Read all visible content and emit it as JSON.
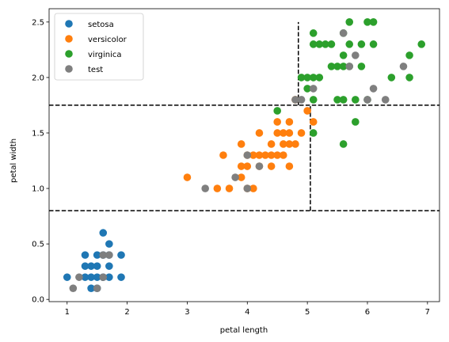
{
  "chart_data": {
    "type": "scatter",
    "title": "",
    "xlabel": "petal length",
    "ylabel": "petal width",
    "xlim": [
      0.7,
      7.2
    ],
    "ylim": [
      -0.02,
      2.62
    ],
    "x_ticks": [
      1,
      2,
      3,
      4,
      5,
      6,
      7
    ],
    "y_ticks": [
      0.0,
      0.5,
      1.0,
      1.5,
      2.0,
      2.5
    ],
    "x_tick_labels": [
      "1",
      "2",
      "3",
      "4",
      "5",
      "6",
      "7"
    ],
    "y_tick_labels": [
      "0.0",
      "0.5",
      "1.0",
      "1.5",
      "2.0",
      "2.5"
    ],
    "grid": false,
    "legend_position": "top-left",
    "series": [
      {
        "name": "setosa",
        "color": "#1f77b4",
        "points": [
          [
            1.0,
            0.2
          ],
          [
            1.3,
            0.2
          ],
          [
            1.3,
            0.3
          ],
          [
            1.3,
            0.4
          ],
          [
            1.4,
            0.1
          ],
          [
            1.4,
            0.2
          ],
          [
            1.4,
            0.3
          ],
          [
            1.5,
            0.1
          ],
          [
            1.5,
            0.2
          ],
          [
            1.5,
            0.3
          ],
          [
            1.5,
            0.4
          ],
          [
            1.6,
            0.2
          ],
          [
            1.6,
            0.4
          ],
          [
            1.6,
            0.6
          ],
          [
            1.7,
            0.2
          ],
          [
            1.7,
            0.3
          ],
          [
            1.7,
            0.4
          ],
          [
            1.7,
            0.5
          ],
          [
            1.9,
            0.2
          ],
          [
            1.9,
            0.4
          ]
        ]
      },
      {
        "name": "versicolor",
        "color": "#ff7f0e",
        "points": [
          [
            3.0,
            1.1
          ],
          [
            3.5,
            1.0
          ],
          [
            3.6,
            1.3
          ],
          [
            3.7,
            1.0
          ],
          [
            3.9,
            1.1
          ],
          [
            3.9,
            1.2
          ],
          [
            3.9,
            1.4
          ],
          [
            4.0,
            1.0
          ],
          [
            4.0,
            1.2
          ],
          [
            4.0,
            1.3
          ],
          [
            4.1,
            1.0
          ],
          [
            4.1,
            1.3
          ],
          [
            4.2,
            1.2
          ],
          [
            4.2,
            1.3
          ],
          [
            4.2,
            1.5
          ],
          [
            4.3,
            1.3
          ],
          [
            4.4,
            1.2
          ],
          [
            4.4,
            1.3
          ],
          [
            4.4,
            1.4
          ],
          [
            4.5,
            1.3
          ],
          [
            4.5,
            1.5
          ],
          [
            4.5,
            1.6
          ],
          [
            4.6,
            1.3
          ],
          [
            4.6,
            1.4
          ],
          [
            4.6,
            1.5
          ],
          [
            4.7,
            1.2
          ],
          [
            4.7,
            1.4
          ],
          [
            4.7,
            1.5
          ],
          [
            4.7,
            1.6
          ],
          [
            4.8,
            1.4
          ],
          [
            4.8,
            1.8
          ],
          [
            4.9,
            1.5
          ],
          [
            5.0,
            1.7
          ],
          [
            5.1,
            1.6
          ]
        ]
      },
      {
        "name": "virginica",
        "color": "#2ca02c",
        "points": [
          [
            4.5,
            1.7
          ],
          [
            4.9,
            2.0
          ],
          [
            5.0,
            2.0
          ],
          [
            5.0,
            1.9
          ],
          [
            5.1,
            1.5
          ],
          [
            5.1,
            1.8
          ],
          [
            5.1,
            2.0
          ],
          [
            5.1,
            2.3
          ],
          [
            5.1,
            2.4
          ],
          [
            5.2,
            2.0
          ],
          [
            5.2,
            2.3
          ],
          [
            5.3,
            2.3
          ],
          [
            5.4,
            2.1
          ],
          [
            5.4,
            2.3
          ],
          [
            5.5,
            1.8
          ],
          [
            5.5,
            2.1
          ],
          [
            5.6,
            1.4
          ],
          [
            5.6,
            1.8
          ],
          [
            5.6,
            2.1
          ],
          [
            5.6,
            2.2
          ],
          [
            5.6,
            2.4
          ],
          [
            5.7,
            2.1
          ],
          [
            5.7,
            2.3
          ],
          [
            5.7,
            2.5
          ],
          [
            5.8,
            1.6
          ],
          [
            5.8,
            1.8
          ],
          [
            5.9,
            2.1
          ],
          [
            5.9,
            2.3
          ],
          [
            6.0,
            1.8
          ],
          [
            6.0,
            2.5
          ],
          [
            6.1,
            2.3
          ],
          [
            6.1,
            2.5
          ],
          [
            6.4,
            2.0
          ],
          [
            6.7,
            2.0
          ],
          [
            6.7,
            2.2
          ],
          [
            6.9,
            2.3
          ]
        ]
      },
      {
        "name": "test",
        "color": "#7f7f7f",
        "points": [
          [
            1.1,
            0.1
          ],
          [
            1.2,
            0.2
          ],
          [
            1.5,
            0.1
          ],
          [
            1.6,
            0.2
          ],
          [
            1.6,
            0.4
          ],
          [
            1.7,
            0.4
          ],
          [
            3.3,
            1.0
          ],
          [
            3.8,
            1.1
          ],
          [
            4.0,
            1.0
          ],
          [
            4.0,
            1.3
          ],
          [
            4.2,
            1.2
          ],
          [
            4.8,
            1.8
          ],
          [
            4.9,
            1.8
          ],
          [
            5.1,
            1.9
          ],
          [
            5.6,
            2.4
          ],
          [
            5.7,
            2.1
          ],
          [
            5.8,
            2.2
          ],
          [
            6.0,
            1.8
          ],
          [
            6.1,
            1.9
          ],
          [
            6.3,
            1.8
          ],
          [
            6.6,
            2.1
          ]
        ]
      }
    ],
    "decision_boundaries": [
      {
        "orientation": "horizontal",
        "value": 0.8,
        "from": 0.7,
        "to": 7.2
      },
      {
        "orientation": "horizontal",
        "value": 1.75,
        "from": 0.7,
        "to": 7.2
      },
      {
        "orientation": "vertical",
        "value": 4.85,
        "from": 1.75,
        "to": 2.5
      },
      {
        "orientation": "vertical",
        "value": 5.05,
        "from": 0.8,
        "to": 1.75
      }
    ]
  }
}
